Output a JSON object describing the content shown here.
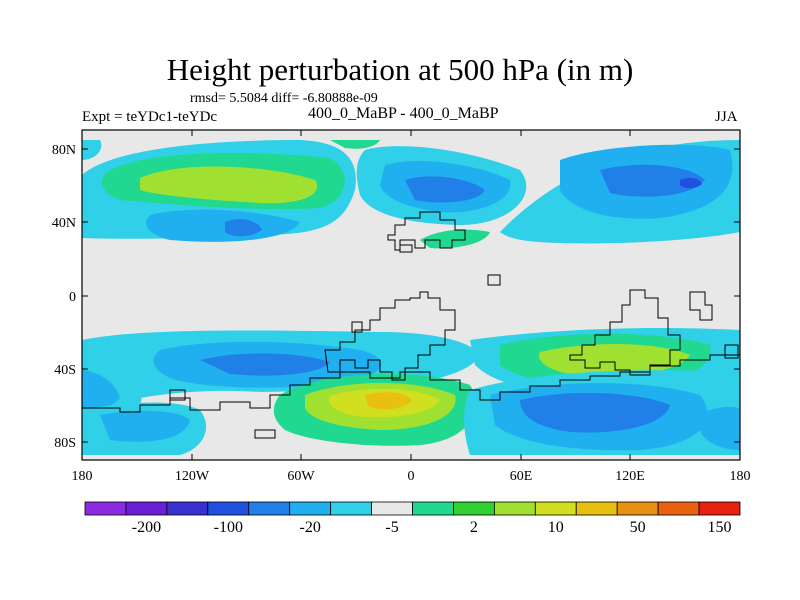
{
  "figure": {
    "title": "Height perturbation at 500 hPa (in m)",
    "stats": "rmsd= 5.5084  diff= -6.80888e-09",
    "expt": "Expt = teYDc1-teYDc",
    "subtitle": "400_0_MaBP - 400_0_MaBP",
    "season": "JJA"
  },
  "map": {
    "lat_ticks": [
      "80N",
      "40N",
      "0",
      "40S",
      "80S"
    ],
    "lon_ticks": [
      "180",
      "120W",
      "60W",
      "0",
      "60E",
      "120E",
      "180"
    ]
  },
  "colorbar": {
    "colors": [
      "#8a2be2",
      "#6a1fd6",
      "#3a2fd0",
      "#2050e0",
      "#2080e8",
      "#20b0f0",
      "#30d0e8",
      "#e8e8e8",
      "#20d890",
      "#30d030",
      "#a0e030",
      "#d0e020",
      "#e8c010",
      "#e89010",
      "#e86010",
      "#e82010"
    ],
    "labels": [
      "-200",
      "-100",
      "-20",
      "-5",
      "2",
      "10",
      "50",
      "150"
    ]
  },
  "colors": {
    "land_outline": "#000000",
    "background_field": "#e8e8e8"
  }
}
